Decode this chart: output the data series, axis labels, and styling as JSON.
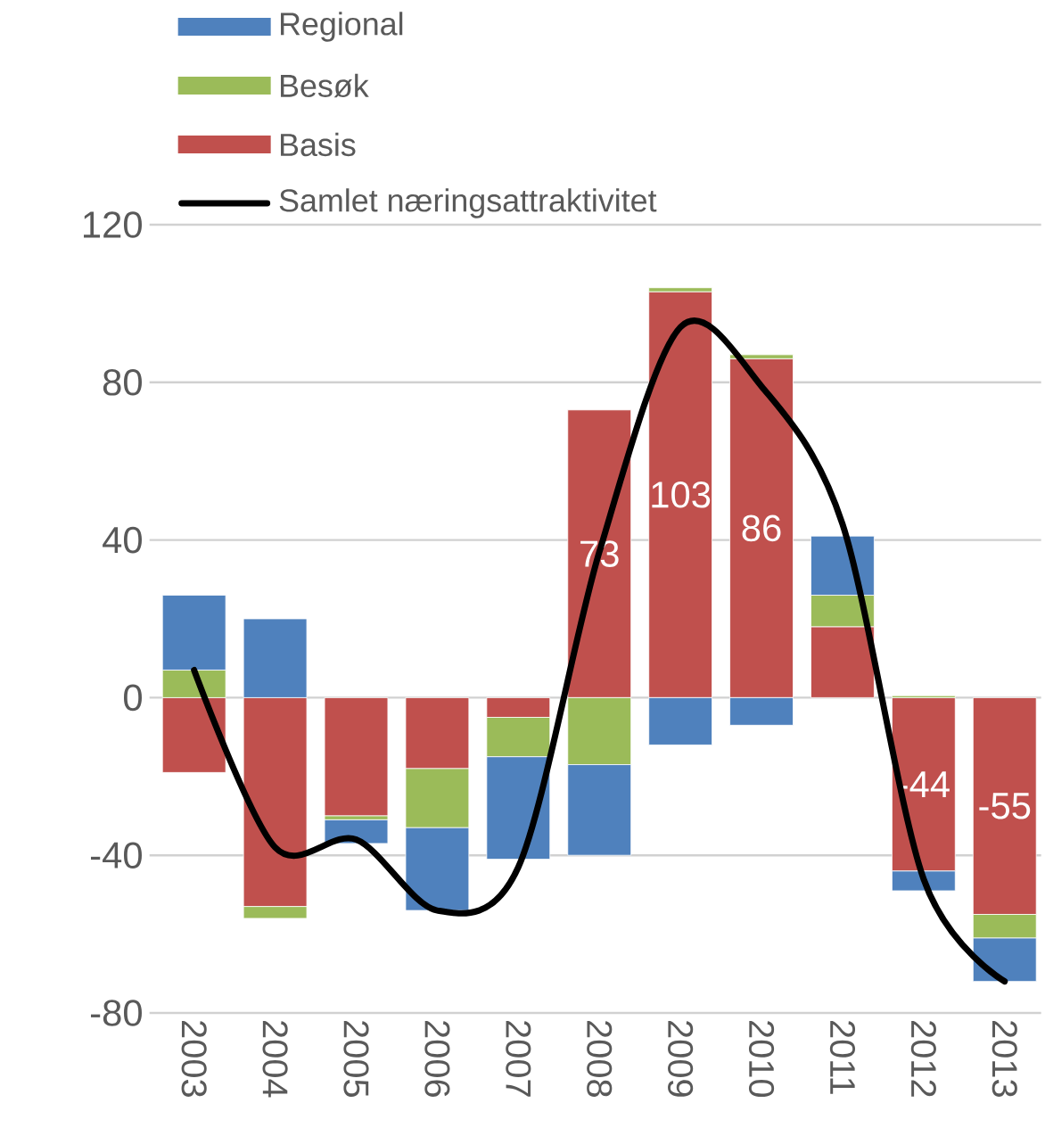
{
  "chart_data": {
    "type": "bar",
    "stacked": true,
    "categories": [
      "2003",
      "2004",
      "2005",
      "2006",
      "2007",
      "2008",
      "2009",
      "2010",
      "2011",
      "2012",
      "2013"
    ],
    "ylim": [
      -80,
      120
    ],
    "yticks": [
      -80,
      -40,
      0,
      40,
      80,
      120
    ],
    "grid": "y",
    "legend": "top left",
    "series": [
      {
        "name": "Basis",
        "color": "#c0504d",
        "values": [
          -19,
          -53,
          -30,
          -18,
          -5,
          73,
          103,
          86,
          18,
          -44,
          -55
        ],
        "value_labels": [
          null,
          null,
          null,
          null,
          null,
          "73",
          "103",
          "86",
          null,
          "-44",
          "-55"
        ]
      },
      {
        "name": "Besøk",
        "color": "#9bbb59",
        "values": [
          7,
          -3,
          -1,
          -15,
          -10,
          -17,
          1,
          1,
          8,
          0.5,
          -6
        ]
      },
      {
        "name": "Regional",
        "color": "#4f81bd",
        "values": [
          19,
          20,
          -6,
          -21,
          -26,
          -23,
          -12,
          -7,
          15,
          -5,
          -11
        ]
      },
      {
        "name": "Samlet næringsattraktivitet",
        "type": "line",
        "color": "#000000",
        "values": [
          7,
          -38,
          -36,
          -54,
          -43,
          37,
          94,
          79,
          44,
          -46,
          -72
        ]
      }
    ]
  }
}
